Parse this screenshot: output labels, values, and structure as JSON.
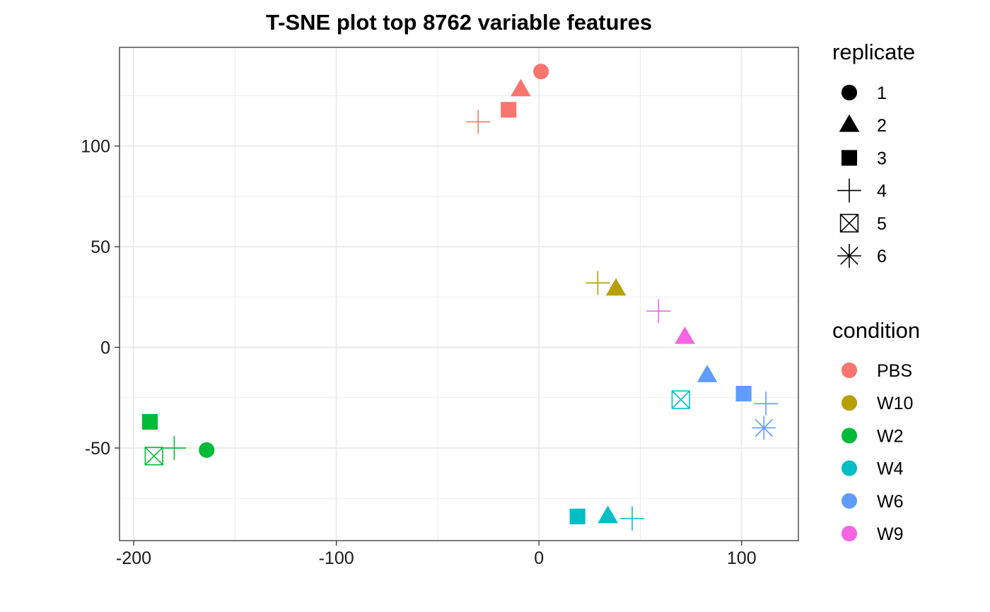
{
  "chart_data": {
    "type": "scatter",
    "title": "T-SNE plot top 8762 variable features",
    "xlabel": "",
    "ylabel": "",
    "xlim": [
      -207,
      128
    ],
    "ylim": [
      -96,
      149
    ],
    "x_ticks": [
      -200,
      -100,
      0,
      100
    ],
    "x_tick_labels": [
      "-200",
      "-100",
      "0",
      "100"
    ],
    "y_ticks": [
      -50,
      0,
      50,
      100
    ],
    "y_tick_labels": [
      "-50",
      "0",
      "50",
      "100"
    ],
    "grid": true,
    "legend_position": "right",
    "legends": [
      {
        "title": "replicate",
        "items": [
          {
            "label": "1",
            "shape": "circle"
          },
          {
            "label": "2",
            "shape": "triangle"
          },
          {
            "label": "3",
            "shape": "square"
          },
          {
            "label": "4",
            "shape": "plus"
          },
          {
            "label": "5",
            "shape": "square-x"
          },
          {
            "label": "6",
            "shape": "asterisk"
          }
        ]
      },
      {
        "title": "condition",
        "items": [
          {
            "label": "PBS",
            "color": "#F8766D"
          },
          {
            "label": "W10",
            "color": "#B79F00"
          },
          {
            "label": "W2",
            "color": "#00BA38"
          },
          {
            "label": "W4",
            "color": "#00BFC4"
          },
          {
            "label": "W6",
            "color": "#619CFF"
          },
          {
            "label": "W9",
            "color": "#F564E3"
          }
        ]
      }
    ],
    "points": [
      {
        "x": 1,
        "y": 137,
        "condition": "PBS",
        "replicate": "1"
      },
      {
        "x": -9,
        "y": 128,
        "condition": "PBS",
        "replicate": "2"
      },
      {
        "x": -15,
        "y": 118,
        "condition": "PBS",
        "replicate": "3"
      },
      {
        "x": -30,
        "y": 112,
        "condition": "PBS",
        "replicate": "4"
      },
      {
        "x": 38,
        "y": 29,
        "condition": "W10",
        "replicate": "2"
      },
      {
        "x": 29,
        "y": 32,
        "condition": "W10",
        "replicate": "4"
      },
      {
        "x": -164,
        "y": -51,
        "condition": "W2",
        "replicate": "1"
      },
      {
        "x": -192,
        "y": -37,
        "condition": "W2",
        "replicate": "3"
      },
      {
        "x": -180,
        "y": -50,
        "condition": "W2",
        "replicate": "4"
      },
      {
        "x": -190,
        "y": -54,
        "condition": "W2",
        "replicate": "5"
      },
      {
        "x": 34,
        "y": -84,
        "condition": "W4",
        "replicate": "2"
      },
      {
        "x": 19,
        "y": -84,
        "condition": "W4",
        "replicate": "3"
      },
      {
        "x": 46,
        "y": -85,
        "condition": "W4",
        "replicate": "4"
      },
      {
        "x": 70,
        "y": -26,
        "condition": "W4",
        "replicate": "5"
      },
      {
        "x": 83,
        "y": -14,
        "condition": "W6",
        "replicate": "2"
      },
      {
        "x": 101,
        "y": -23,
        "condition": "W6",
        "replicate": "3"
      },
      {
        "x": 112,
        "y": -28,
        "condition": "W6",
        "replicate": "4"
      },
      {
        "x": 111,
        "y": -40,
        "condition": "W6",
        "replicate": "6"
      },
      {
        "x": 72,
        "y": 5,
        "condition": "W9",
        "replicate": "2"
      },
      {
        "x": 59,
        "y": 18,
        "condition": "W9",
        "replicate": "4"
      }
    ]
  }
}
